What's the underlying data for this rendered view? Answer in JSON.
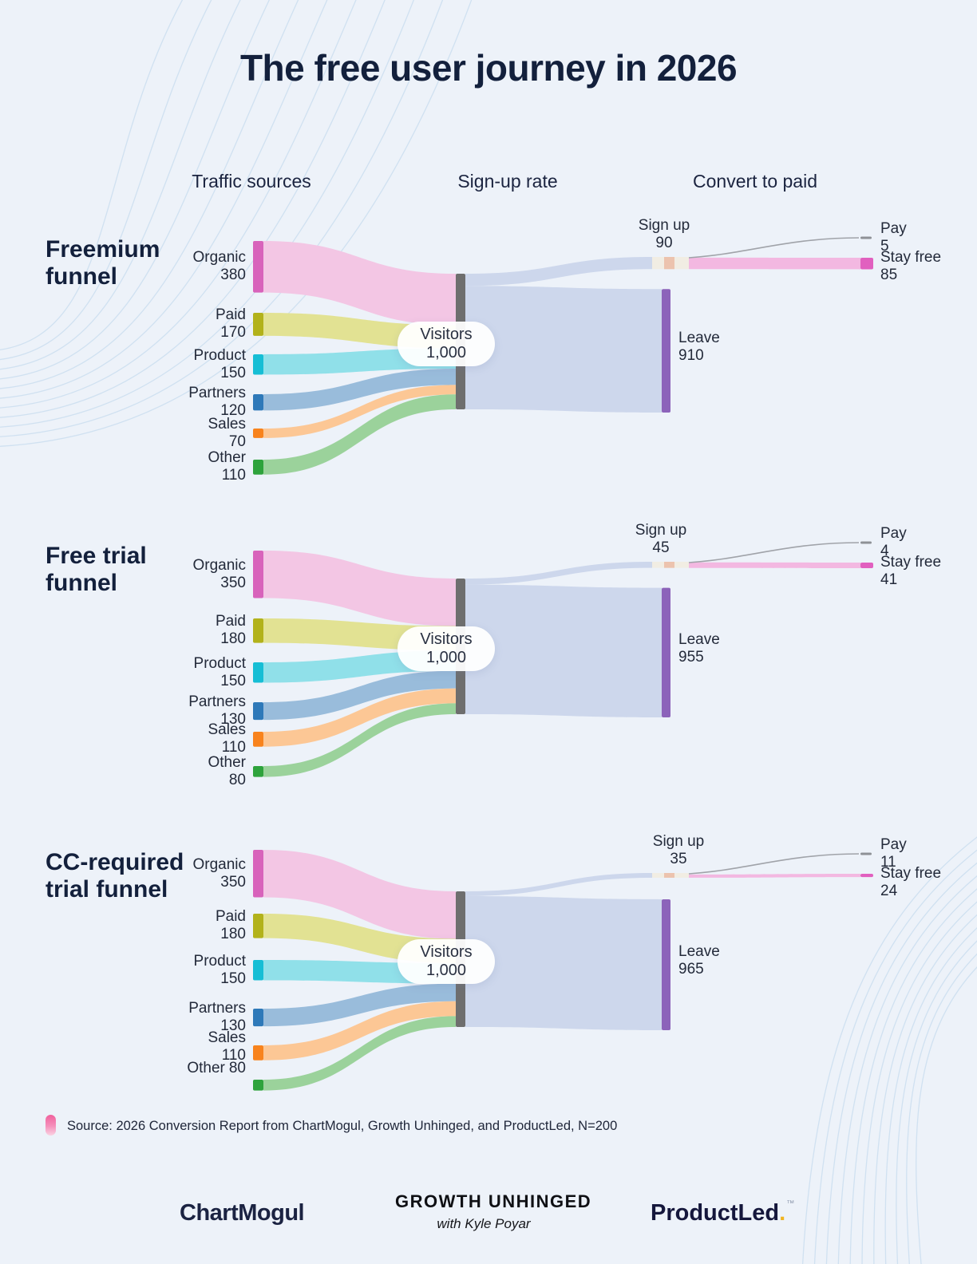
{
  "title": "The free user journey in 2026",
  "column_headers": {
    "traffic": "Traffic sources",
    "signup": "Sign-up rate",
    "convert": "Convert to paid"
  },
  "funnels": [
    {
      "title_lines": [
        "Freemium",
        "funnel"
      ],
      "sources": [
        {
          "label": "Organic",
          "value": 380,
          "node_color": "#d863bb",
          "flow_color": "#f3c6e4"
        },
        {
          "label": "Paid",
          "value": 170,
          "node_color": "#b2b21b",
          "flow_color": "#e2e293"
        },
        {
          "label": "Product",
          "value": 150,
          "node_color": "#16bed5",
          "flow_color": "#90e0e9"
        },
        {
          "label": "Partners",
          "value": 120,
          "node_color": "#2e79b9",
          "flow_color": "#99bcdb"
        },
        {
          "label": "Sales",
          "value": 70,
          "node_color": "#f8831d",
          "flow_color": "#fcc795"
        },
        {
          "label": "Other",
          "value": 110,
          "node_color": "#2ea33c",
          "flow_color": "#9bd29b"
        }
      ],
      "visitors": {
        "label": "Visitors",
        "display": "1,000",
        "value": 1000
      },
      "signup": {
        "label": "Sign up",
        "value": 90
      },
      "leave": {
        "label": "Leave",
        "value": 910
      },
      "pay": {
        "label": "Pay",
        "value": 5
      },
      "stay_free": {
        "label": "Stay free",
        "value": 85
      }
    },
    {
      "title_lines": [
        "Free trial",
        "funnel"
      ],
      "sources": [
        {
          "label": "Organic",
          "value": 350,
          "node_color": "#d863bb",
          "flow_color": "#f3c6e4"
        },
        {
          "label": "Paid",
          "value": 180,
          "node_color": "#b2b21b",
          "flow_color": "#e2e293"
        },
        {
          "label": "Product",
          "value": 150,
          "node_color": "#16bed5",
          "flow_color": "#90e0e9"
        },
        {
          "label": "Partners",
          "value": 130,
          "node_color": "#2e79b9",
          "flow_color": "#99bcdb"
        },
        {
          "label": "Sales",
          "value": 110,
          "node_color": "#f8831d",
          "flow_color": "#fcc795"
        },
        {
          "label": "Other",
          "value": 80,
          "node_color": "#2ea33c",
          "flow_color": "#9bd29b"
        }
      ],
      "visitors": {
        "label": "Visitors",
        "display": "1,000",
        "value": 1000
      },
      "signup": {
        "label": "Sign up",
        "value": 45
      },
      "leave": {
        "label": "Leave",
        "value": 955
      },
      "pay": {
        "label": "Pay",
        "value": 4
      },
      "stay_free": {
        "label": "Stay free",
        "value": 41
      }
    },
    {
      "title_lines": [
        "CC-required",
        "trial funnel"
      ],
      "sources": [
        {
          "label": "Organic",
          "value": 350,
          "node_color": "#d863bb",
          "flow_color": "#f3c6e4"
        },
        {
          "label": "Paid",
          "value": 180,
          "node_color": "#b2b21b",
          "flow_color": "#e2e293"
        },
        {
          "label": "Product",
          "value": 150,
          "node_color": "#16bed5",
          "flow_color": "#90e0e9"
        },
        {
          "label": "Partners",
          "value": 130,
          "node_color": "#2e79b9",
          "flow_color": "#99bcdb"
        },
        {
          "label": "Sales",
          "value": 110,
          "node_color": "#f8831d",
          "flow_color": "#fcc795"
        },
        {
          "label": "Other",
          "value": 80,
          "node_color": "#2ea33c",
          "flow_color": "#9bd29b"
        }
      ],
      "visitors": {
        "label": "Visitors",
        "display": "1,000",
        "value": 1000
      },
      "signup": {
        "label": "Sign up",
        "value": 35
      },
      "leave": {
        "label": "Leave",
        "value": 965
      },
      "pay": {
        "label": "Pay",
        "value": 11
      },
      "stay_free": {
        "label": "Stay free",
        "value": 24
      }
    }
  ],
  "colors": {
    "background": "#edf2f9",
    "heading": "#13203c",
    "label": "#232a3a",
    "visitors_bar": "#6e6e6e",
    "main_flow": "#cdd7ec",
    "leave_bar": "#8c63ba",
    "signup_node_cream": "#f1ede3",
    "signup_node_peach": "#ecc3ae",
    "stay_flow": "#f3b8e1",
    "stay_node": "#e160bf",
    "pay_line": "#a0a3a9",
    "pay_dash": "#8e9196",
    "decor_line": "#c6dbed",
    "note_icon_pink": "#f0609c",
    "productled_accent": "#f0b421"
  },
  "source_note": {
    "text": "Source: 2026 Conversion Report from ChartMogul, Growth Unhinged, and ProductLed, N=200"
  },
  "footer": {
    "chartmogul": "ChartMogul",
    "growth_unhinged": "GROWTH UNHINGED",
    "byline": "with Kyle Poyar",
    "productled": "ProductLed",
    "productled_dot": ".",
    "tm": "™"
  },
  "chart_data": {
    "type": "sankey",
    "title": "The free user journey in 2026",
    "column_headers": [
      "Traffic sources",
      "Sign-up rate",
      "Convert to paid"
    ],
    "funnels": [
      {
        "name": "Freemium funnel",
        "links": [
          {
            "source": "Organic",
            "target": "Visitors",
            "value": 380
          },
          {
            "source": "Paid",
            "target": "Visitors",
            "value": 170
          },
          {
            "source": "Product",
            "target": "Visitors",
            "value": 150
          },
          {
            "source": "Partners",
            "target": "Visitors",
            "value": 120
          },
          {
            "source": "Sales",
            "target": "Visitors",
            "value": 70
          },
          {
            "source": "Other",
            "target": "Visitors",
            "value": 110
          },
          {
            "source": "Visitors",
            "target": "Sign up",
            "value": 90
          },
          {
            "source": "Visitors",
            "target": "Leave",
            "value": 910
          },
          {
            "source": "Sign up",
            "target": "Pay",
            "value": 5
          },
          {
            "source": "Sign up",
            "target": "Stay free",
            "value": 85
          }
        ]
      },
      {
        "name": "Free trial funnel",
        "links": [
          {
            "source": "Organic",
            "target": "Visitors",
            "value": 350
          },
          {
            "source": "Paid",
            "target": "Visitors",
            "value": 180
          },
          {
            "source": "Product",
            "target": "Visitors",
            "value": 150
          },
          {
            "source": "Partners",
            "target": "Visitors",
            "value": 130
          },
          {
            "source": "Sales",
            "target": "Visitors",
            "value": 110
          },
          {
            "source": "Other",
            "target": "Visitors",
            "value": 80
          },
          {
            "source": "Visitors",
            "target": "Sign up",
            "value": 45
          },
          {
            "source": "Visitors",
            "target": "Leave",
            "value": 955
          },
          {
            "source": "Sign up",
            "target": "Pay",
            "value": 4
          },
          {
            "source": "Sign up",
            "target": "Stay free",
            "value": 41
          }
        ]
      },
      {
        "name": "CC-required trial funnel",
        "links": [
          {
            "source": "Organic",
            "target": "Visitors",
            "value": 350
          },
          {
            "source": "Paid",
            "target": "Visitors",
            "value": 180
          },
          {
            "source": "Product",
            "target": "Visitors",
            "value": 150
          },
          {
            "source": "Partners",
            "target": "Visitors",
            "value": 130
          },
          {
            "source": "Sales",
            "target": "Visitors",
            "value": 110
          },
          {
            "source": "Other",
            "target": "Visitors",
            "value": 80
          },
          {
            "source": "Visitors",
            "target": "Sign up",
            "value": 35
          },
          {
            "source": "Visitors",
            "target": "Leave",
            "value": 965
          },
          {
            "source": "Sign up",
            "target": "Pay",
            "value": 11
          },
          {
            "source": "Sign up",
            "target": "Stay free",
            "value": 24
          }
        ]
      }
    ]
  }
}
